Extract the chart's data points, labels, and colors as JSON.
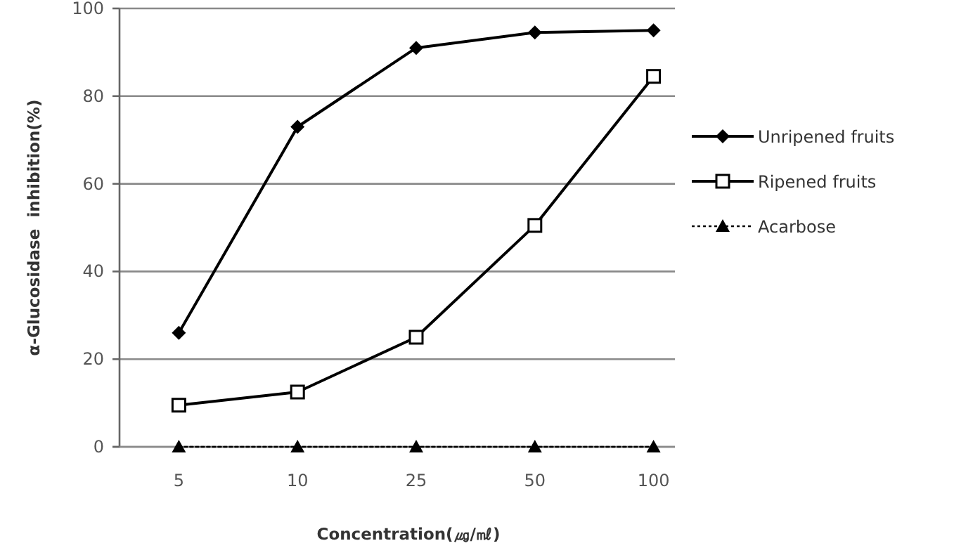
{
  "chart_data": {
    "type": "line",
    "xlabel": "Concentration(㎍/㎖)",
    "ylabel": "α-Glucosidase  inhibition(%)",
    "categories": [
      "5",
      "10",
      "25",
      "50",
      "100"
    ],
    "series": [
      {
        "name": "Unripened fruits",
        "color": "#000000",
        "marker": "diamond",
        "line_style": "solid",
        "values": [
          26,
          73,
          91,
          94.5,
          95
        ]
      },
      {
        "name": "Ripened fruits",
        "color": "#000000",
        "marker": "square",
        "line_style": "solid",
        "values": [
          9.5,
          12.5,
          25,
          50.5,
          84.5
        ]
      },
      {
        "name": "Acarbose",
        "color": "#000000",
        "marker": "triangle",
        "line_style": "dotted",
        "values": [
          0,
          0,
          0,
          0,
          0
        ]
      }
    ],
    "ylim": [
      0,
      100
    ],
    "yticks": [
      0,
      20,
      40,
      60,
      80,
      100
    ],
    "grid": "y",
    "legend": "right"
  }
}
